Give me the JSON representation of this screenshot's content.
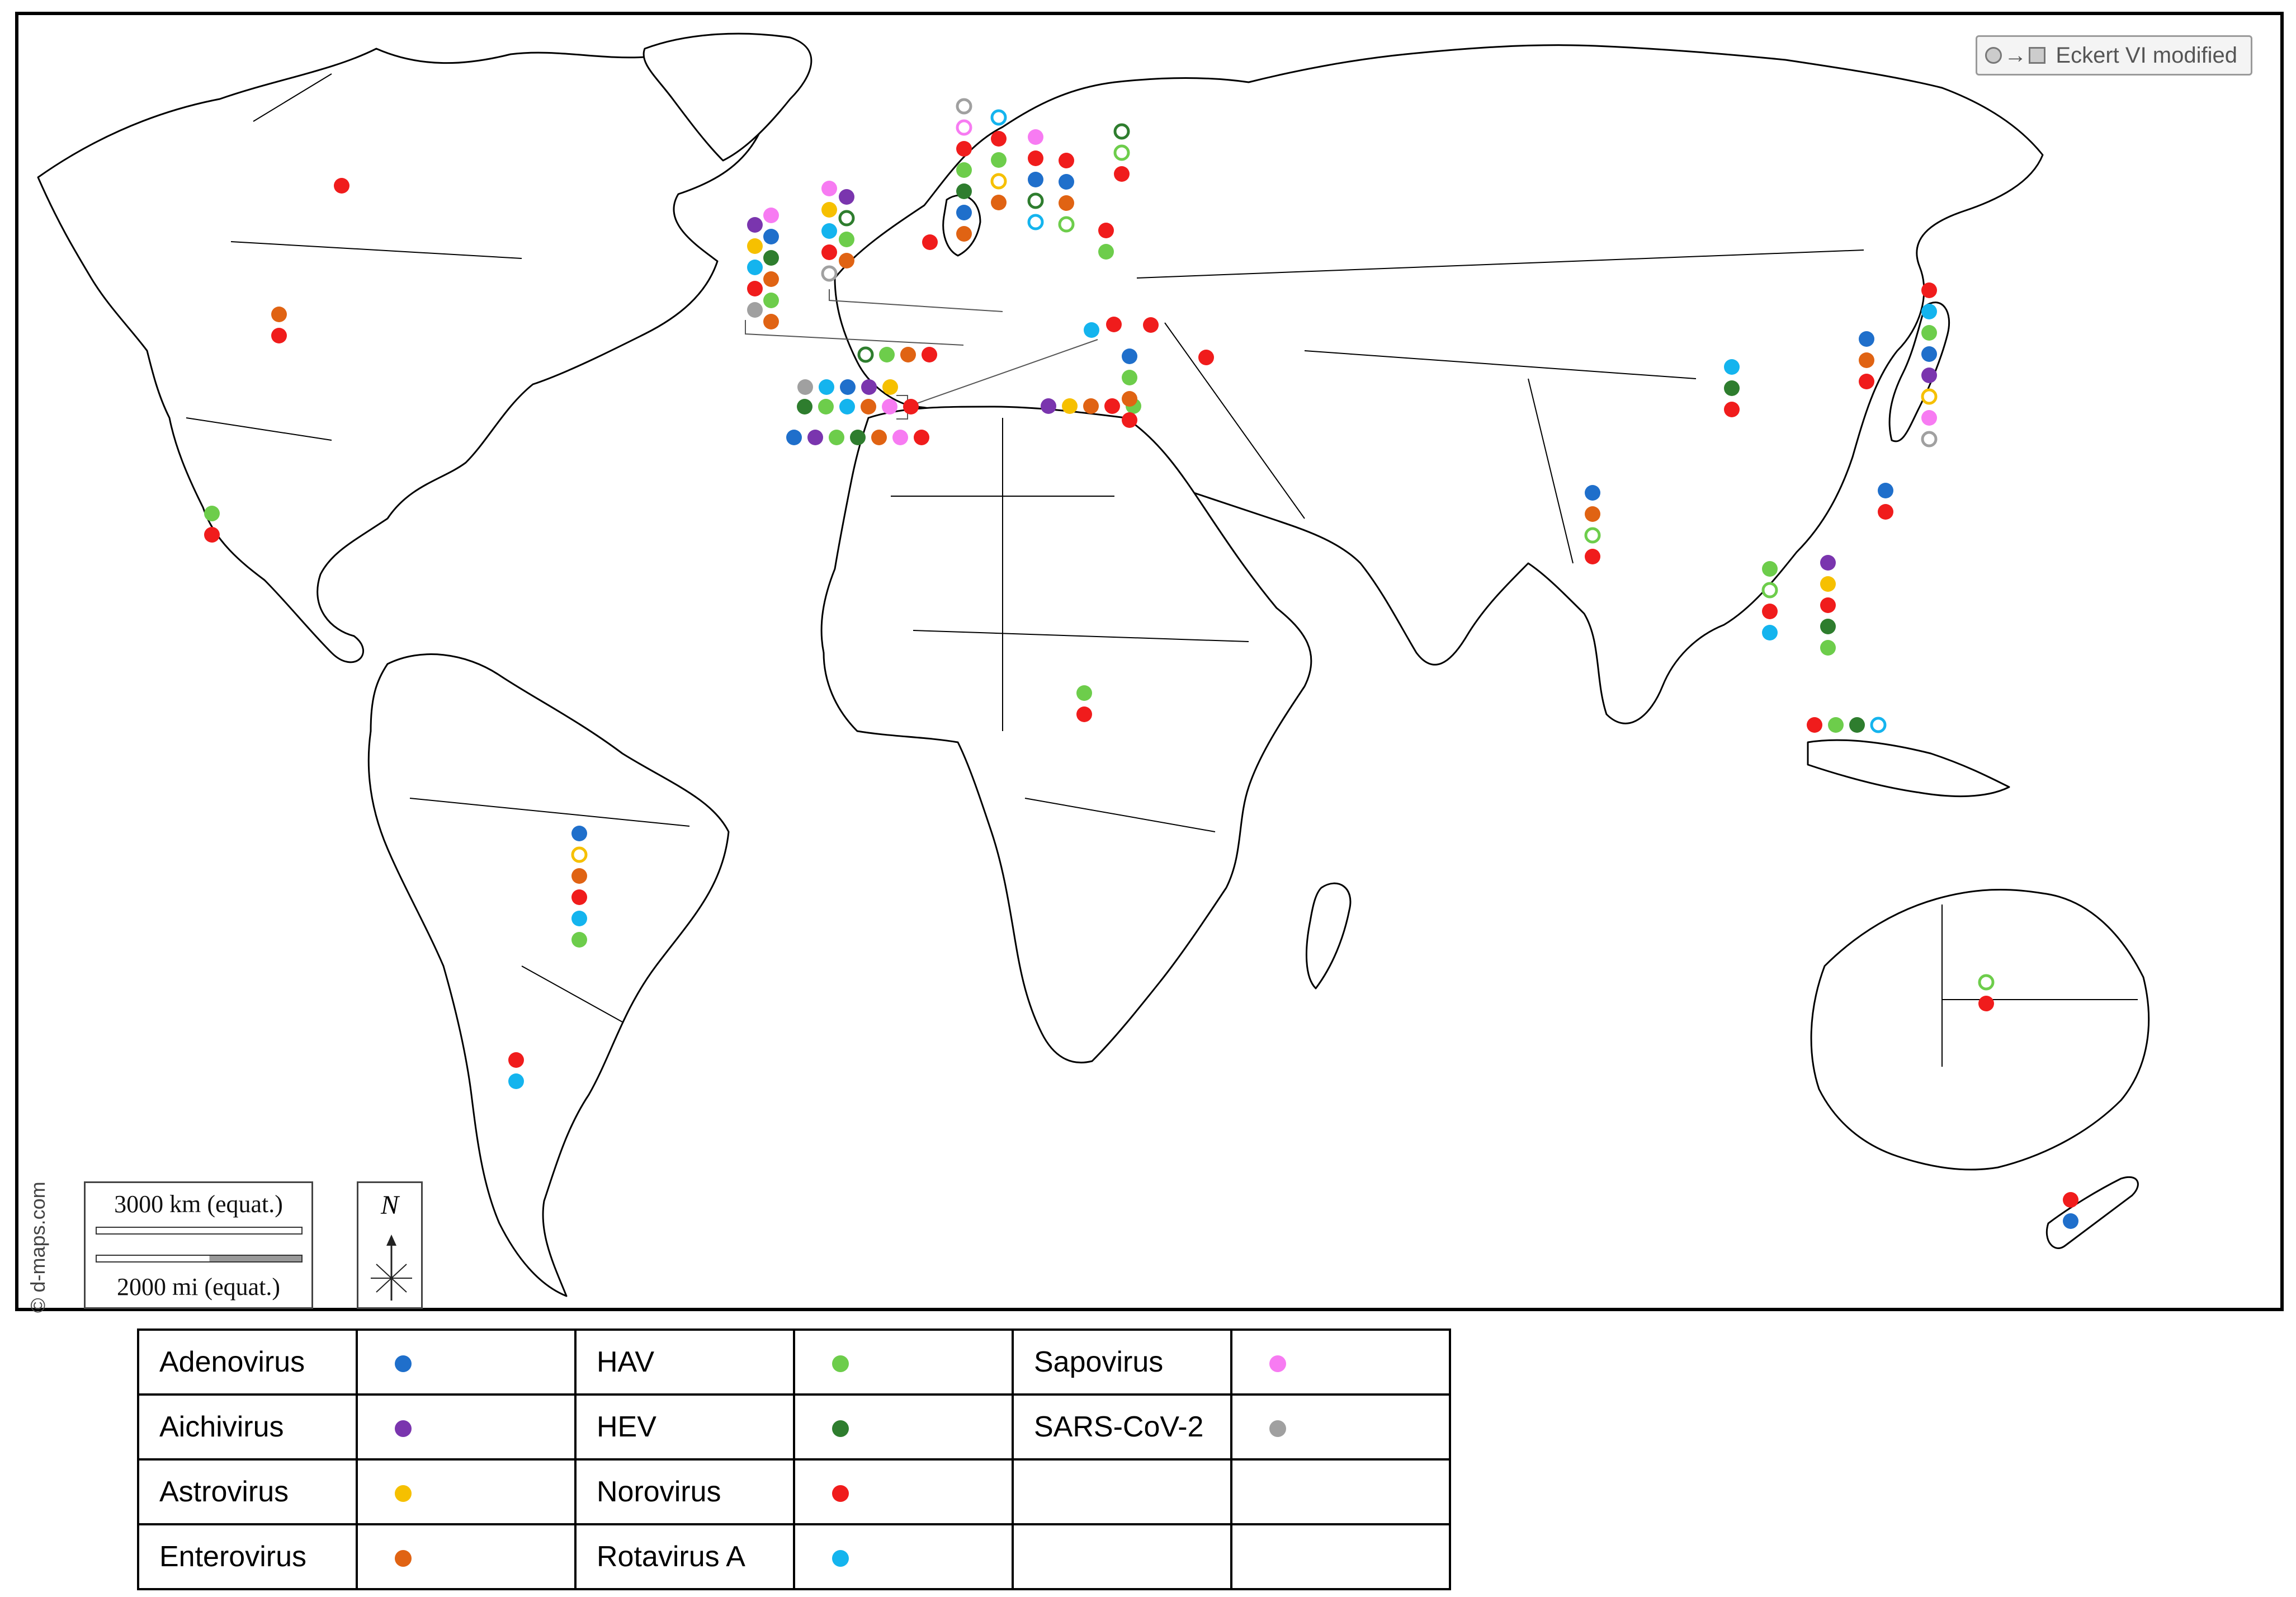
{
  "map": {
    "projection_label": "Eckert VI modified",
    "credit": "© d-maps.com",
    "scale": {
      "km_label": "3000 km (equat.)",
      "mi_label": "2000 mi (equat.)"
    },
    "north_label": "N"
  },
  "colors": {
    "Adenovirus": "#1f6fcb",
    "Aichivirus": "#7a35ae",
    "Astrovirus": "#f6c000",
    "Enterovirus": "#e06313",
    "HAV": "#6dcd4b",
    "HEV": "#2e7d2e",
    "Norovirus": "#f01c1c",
    "Rotavirus A": "#14b4ee",
    "Sapovirus": "#f77bf2",
    "SARS-CoV-2": "#a0a0a0"
  },
  "legend": {
    "rows": [
      [
        {
          "label": "Adenovirus",
          "color": "#1f6fcb"
        },
        {
          "label": "HAV",
          "color": "#6dcd4b"
        },
        {
          "label": "Sapovirus",
          "color": "#f77bf2"
        }
      ],
      [
        {
          "label": "Aichivirus",
          "color": "#7a35ae"
        },
        {
          "label": "HEV",
          "color": "#2e7d2e"
        },
        {
          "label": "SARS-CoV-2",
          "color": "#a0a0a0"
        }
      ],
      [
        {
          "label": "Astrovirus",
          "color": "#f6c000"
        },
        {
          "label": "Norovirus",
          "color": "#f01c1c"
        },
        {
          "label": "",
          "color": ""
        }
      ],
      [
        {
          "label": "Enterovirus",
          "color": "#e06313"
        },
        {
          "label": "Rotavirus A",
          "color": "#14b4ee"
        },
        {
          "label": "",
          "color": ""
        }
      ]
    ]
  },
  "sites": [
    {
      "region": "Canada",
      "markers": [
        {
          "virus": "Norovirus",
          "hollow": false
        }
      ]
    },
    {
      "region": "United States",
      "markers": [
        {
          "virus": "Enterovirus",
          "hollow": false
        },
        {
          "virus": "Norovirus",
          "hollow": false
        }
      ]
    },
    {
      "region": "Mexico",
      "markers": [
        {
          "virus": "HAV",
          "hollow": false
        },
        {
          "virus": "Norovirus",
          "hollow": false
        }
      ]
    },
    {
      "region": "Brazil",
      "markers": [
        {
          "virus": "Adenovirus",
          "hollow": false
        },
        {
          "virus": "Astrovirus",
          "hollow": true
        },
        {
          "virus": "Enterovirus",
          "hollow": false
        },
        {
          "virus": "Norovirus",
          "hollow": false
        },
        {
          "virus": "Rotavirus A",
          "hollow": false
        },
        {
          "virus": "HAV",
          "hollow": false
        }
      ]
    },
    {
      "region": "Argentina",
      "markers": [
        {
          "virus": "Norovirus",
          "hollow": false
        },
        {
          "virus": "Rotavirus A",
          "hollow": false
        }
      ]
    },
    {
      "region": "Spain (callout column 1)",
      "markers": [
        {
          "virus": "Aichivirus",
          "hollow": false
        },
        {
          "virus": "Astrovirus",
          "hollow": false
        },
        {
          "virus": "Rotavirus A",
          "hollow": false
        },
        {
          "virus": "Norovirus",
          "hollow": false
        },
        {
          "virus": "SARS-CoV-2",
          "hollow": false
        }
      ]
    },
    {
      "region": "Spain (callout column 2)",
      "markers": [
        {
          "virus": "Sapovirus",
          "hollow": false
        },
        {
          "virus": "Adenovirus",
          "hollow": false
        },
        {
          "virus": "HEV",
          "hollow": false
        },
        {
          "virus": "Enterovirus",
          "hollow": false
        },
        {
          "virus": "HAV",
          "hollow": false
        },
        {
          "virus": "Enterovirus",
          "hollow": false
        }
      ]
    },
    {
      "region": "France (callout column 1)",
      "markers": [
        {
          "virus": "Sapovirus",
          "hollow": false
        },
        {
          "virus": "Astrovirus",
          "hollow": false
        },
        {
          "virus": "Rotavirus A",
          "hollow": false
        },
        {
          "virus": "Norovirus",
          "hollow": false
        },
        {
          "virus": "SARS-CoV-2",
          "hollow": true
        }
      ]
    },
    {
      "region": "France (callout column 2)",
      "markers": [
        {
          "virus": "Aichivirus",
          "hollow": false
        },
        {
          "virus": "HEV",
          "hollow": true
        },
        {
          "virus": "HAV",
          "hollow": false
        },
        {
          "virus": "Enterovirus",
          "hollow": false
        }
      ]
    },
    {
      "region": "Portugal",
      "markers": [
        {
          "virus": "HEV",
          "hollow": true
        },
        {
          "virus": "HAV",
          "hollow": false
        },
        {
          "virus": "Enterovirus",
          "hollow": false
        },
        {
          "virus": "Norovirus",
          "hollow": false
        }
      ]
    },
    {
      "region": "Italy (callout row 1)",
      "markers": [
        {
          "virus": "SARS-CoV-2",
          "hollow": false
        },
        {
          "virus": "Rotavirus A",
          "hollow": false
        },
        {
          "virus": "Adenovirus",
          "hollow": false
        },
        {
          "virus": "Aichivirus",
          "hollow": false
        },
        {
          "virus": "Astrovirus",
          "hollow": false
        }
      ]
    },
    {
      "region": "Italy (callout row 2)",
      "markers": [
        {
          "virus": "HEV",
          "hollow": false
        },
        {
          "virus": "HAV",
          "hollow": false
        },
        {
          "virus": "Rotavirus A",
          "hollow": false
        },
        {
          "virus": "Enterovirus",
          "hollow": false
        },
        {
          "virus": "Sapovirus",
          "hollow": false
        },
        {
          "virus": "Norovirus",
          "hollow": false
        }
      ]
    },
    {
      "region": "Morocco",
      "markers": [
        {
          "virus": "Adenovirus",
          "hollow": false
        },
        {
          "virus": "Aichivirus",
          "hollow": false
        },
        {
          "virus": "HAV",
          "hollow": false
        },
        {
          "virus": "HEV",
          "hollow": false
        },
        {
          "virus": "Enterovirus",
          "hollow": false
        },
        {
          "virus": "Sapovirus",
          "hollow": false
        },
        {
          "virus": "Norovirus",
          "hollow": false
        }
      ]
    },
    {
      "region": "Tunisia",
      "markers": [
        {
          "virus": "Aichivirus",
          "hollow": false
        },
        {
          "virus": "Astrovirus",
          "hollow": false
        },
        {
          "virus": "Enterovirus",
          "hollow": false
        },
        {
          "virus": "Norovirus",
          "hollow": false
        },
        {
          "virus": "HAV",
          "hollow": false
        }
      ]
    },
    {
      "region": "Ireland",
      "markers": [
        {
          "virus": "Norovirus",
          "hollow": false
        }
      ]
    },
    {
      "region": "United Kingdom",
      "markers": [
        {
          "virus": "SARS-CoV-2",
          "hollow": true
        },
        {
          "virus": "Sapovirus",
          "hollow": true
        },
        {
          "virus": "Norovirus",
          "hollow": false
        },
        {
          "virus": "HAV",
          "hollow": false
        },
        {
          "virus": "HEV",
          "hollow": false
        },
        {
          "virus": "Adenovirus",
          "hollow": false
        },
        {
          "virus": "Enterovirus",
          "hollow": false
        }
      ]
    },
    {
      "region": "Netherlands",
      "markers": [
        {
          "virus": "Rotavirus A",
          "hollow": true
        },
        {
          "virus": "Norovirus",
          "hollow": false
        },
        {
          "virus": "HAV",
          "hollow": false
        },
        {
          "virus": "Astrovirus",
          "hollow": true
        },
        {
          "virus": "Enterovirus",
          "hollow": false
        }
      ]
    },
    {
      "region": "Denmark",
      "markers": [
        {
          "virus": "Sapovirus",
          "hollow": false
        },
        {
          "virus": "Norovirus",
          "hollow": false
        },
        {
          "virus": "Adenovirus",
          "hollow": false
        },
        {
          "virus": "HEV",
          "hollow": true
        },
        {
          "virus": "Rotavirus A",
          "hollow": true
        }
      ]
    },
    {
      "region": "Sweden",
      "markers": [
        {
          "virus": "Norovirus",
          "hollow": false
        },
        {
          "virus": "Adenovirus",
          "hollow": false
        },
        {
          "virus": "Enterovirus",
          "hollow": false
        },
        {
          "virus": "HAV",
          "hollow": true
        }
      ]
    },
    {
      "region": "Finland",
      "markers": [
        {
          "virus": "HEV",
          "hollow": true
        },
        {
          "virus": "HAV",
          "hollow": true
        },
        {
          "virus": "Norovirus",
          "hollow": false
        }
      ]
    },
    {
      "region": "Poland",
      "markers": [
        {
          "virus": "Norovirus",
          "hollow": false
        },
        {
          "virus": "HAV",
          "hollow": false
        }
      ]
    },
    {
      "region": "Slovenia",
      "markers": [
        {
          "virus": "Rotavirus A",
          "hollow": false
        }
      ]
    },
    {
      "region": "Croatia",
      "markers": [
        {
          "virus": "Norovirus",
          "hollow": false
        }
      ]
    },
    {
      "region": "Serbia",
      "markers": [
        {
          "virus": "Norovirus",
          "hollow": false
        }
      ]
    },
    {
      "region": "Greece",
      "markers": [
        {
          "virus": "Adenovirus",
          "hollow": false
        },
        {
          "virus": "HAV",
          "hollow": false
        },
        {
          "virus": "Enterovirus",
          "hollow": false
        },
        {
          "virus": "Norovirus",
          "hollow": false
        }
      ]
    },
    {
      "region": "Turkey",
      "markers": [
        {
          "virus": "Norovirus",
          "hollow": false
        }
      ]
    },
    {
      "region": "Central Africa",
      "markers": [
        {
          "virus": "HAV",
          "hollow": false
        },
        {
          "virus": "Norovirus",
          "hollow": false
        }
      ]
    },
    {
      "region": "India",
      "markers": [
        {
          "virus": "Adenovirus",
          "hollow": false
        },
        {
          "virus": "Enterovirus",
          "hollow": false
        },
        {
          "virus": "HAV",
          "hollow": true
        },
        {
          "virus": "Norovirus",
          "hollow": false
        }
      ]
    },
    {
      "region": "China",
      "markers": [
        {
          "virus": "Rotavirus A",
          "hollow": false
        },
        {
          "virus": "HEV",
          "hollow": false
        },
        {
          "virus": "Norovirus",
          "hollow": false
        }
      ]
    },
    {
      "region": "South Korea",
      "markers": [
        {
          "virus": "Adenovirus",
          "hollow": false
        },
        {
          "virus": "Enterovirus",
          "hollow": false
        },
        {
          "virus": "Norovirus",
          "hollow": false
        }
      ]
    },
    {
      "region": "Japan",
      "markers": [
        {
          "virus": "Norovirus",
          "hollow": false
        },
        {
          "virus": "Rotavirus A",
          "hollow": false
        },
        {
          "virus": "HAV",
          "hollow": false
        },
        {
          "virus": "Adenovirus",
          "hollow": false
        },
        {
          "virus": "Aichivirus",
          "hollow": false
        },
        {
          "virus": "Astrovirus",
          "hollow": true
        },
        {
          "virus": "Sapovirus",
          "hollow": false
        },
        {
          "virus": "SARS-CoV-2",
          "hollow": true
        }
      ]
    },
    {
      "region": "Taiwan",
      "markers": [
        {
          "virus": "Adenovirus",
          "hollow": false
        },
        {
          "virus": "Norovirus",
          "hollow": false
        }
      ]
    },
    {
      "region": "Thailand",
      "markers": [
        {
          "virus": "HAV",
          "hollow": false
        },
        {
          "virus": "HAV",
          "hollow": true
        },
        {
          "virus": "Norovirus",
          "hollow": false
        },
        {
          "virus": "Rotavirus A",
          "hollow": false
        }
      ]
    },
    {
      "region": "Vietnam",
      "markers": [
        {
          "virus": "Aichivirus",
          "hollow": false
        },
        {
          "virus": "Astrovirus",
          "hollow": false
        },
        {
          "virus": "Norovirus",
          "hollow": false
        },
        {
          "virus": "HEV",
          "hollow": false
        },
        {
          "virus": "HAV",
          "hollow": false
        }
      ]
    },
    {
      "region": "Singapore / Malaysia",
      "markers": [
        {
          "virus": "Norovirus",
          "hollow": false
        },
        {
          "virus": "HAV",
          "hollow": false
        },
        {
          "virus": "HEV",
          "hollow": false
        },
        {
          "virus": "Rotavirus A",
          "hollow": true
        }
      ]
    },
    {
      "region": "Australia",
      "markers": [
        {
          "virus": "HAV",
          "hollow": true
        },
        {
          "virus": "Norovirus",
          "hollow": false
        }
      ]
    },
    {
      "region": "New Zealand",
      "markers": [
        {
          "virus": "Norovirus",
          "hollow": false
        },
        {
          "virus": "Adenovirus",
          "hollow": false
        }
      ]
    }
  ]
}
